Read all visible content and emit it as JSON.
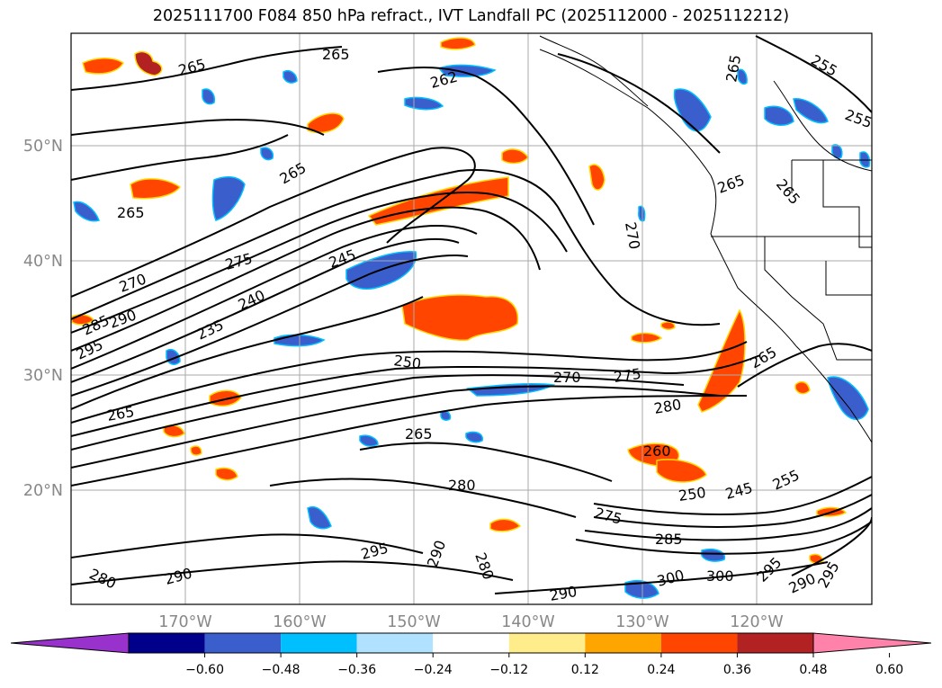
{
  "title": "2025111700 F084 850 hPa refract., IVT Landfall PC (2025112000 - 2025112212)",
  "map": {
    "lat_labels": [
      "50°N",
      "40°N",
      "30°N",
      "20°N"
    ],
    "lon_labels": [
      "170°W",
      "160°W",
      "150°W",
      "140°W",
      "130°W",
      "120°W"
    ],
    "contour_labels": [
      "265",
      "265",
      "265",
      "262",
      "255",
      "255",
      "265",
      "265",
      "265",
      "270",
      "275",
      "270",
      "245",
      "240",
      "235",
      "290",
      "285",
      "295",
      "250",
      "270",
      "275",
      "280",
      "265",
      "265",
      "280",
      "260",
      "250",
      "245",
      "255",
      "275",
      "285",
      "290",
      "280",
      "295",
      "290",
      "300",
      "300",
      "295",
      "290",
      "295",
      "280",
      "290",
      "265",
      "265"
    ]
  },
  "colorbar": {
    "ticks": [
      "−0.60",
      "−0.48",
      "−0.36",
      "−0.24",
      "−0.12",
      "0.12",
      "0.24",
      "0.36",
      "0.48",
      "0.60"
    ],
    "colors": [
      "#9932cc",
      "#00008b",
      "#3a5fcd",
      "#00bfff",
      "#b0e2ff",
      "#ffffff",
      "#ffec8b",
      "#ffa500",
      "#ff4500",
      "#b22222",
      "#ff82ab"
    ]
  }
}
